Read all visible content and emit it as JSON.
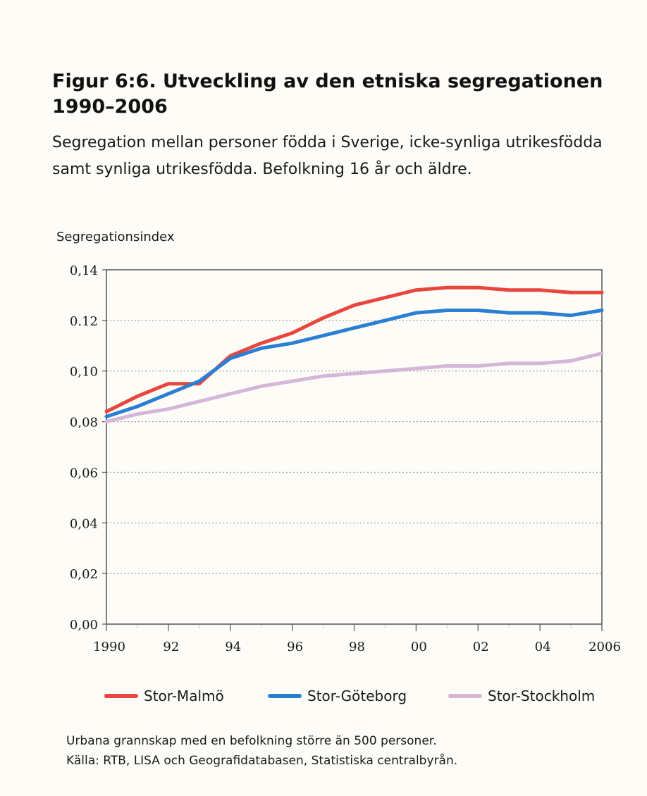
{
  "figure": {
    "title": "Figur 6:6. Utveckling av den etniska segregationen 1990–2006",
    "subtitle": "Segregation mellan personer födda i Sverige, icke-synliga utrikesfödda samt synliga utrikesfödda. Befolkning 16 år och äldre.",
    "note": "Urbana grannskap med en befolkning större än 500 personer.",
    "source": "Källa: RTB, LISA och Geografidatabasen, Statistiska centralbyrån."
  },
  "chart_data": {
    "type": "line",
    "title": "",
    "xlabel": "",
    "ylabel": "Segregationsindex",
    "x": [
      1990,
      1991,
      1992,
      1993,
      1994,
      1995,
      1996,
      1997,
      1998,
      1999,
      2000,
      2001,
      2002,
      2003,
      2004,
      2005,
      2006
    ],
    "xlim": [
      1990,
      2006
    ],
    "ylim": [
      0,
      0.14
    ],
    "grid": true,
    "legend_position": "bottom",
    "x_ticks": [
      {
        "value": 1990,
        "label": "1990"
      },
      {
        "value": 1992,
        "label": "92"
      },
      {
        "value": 1994,
        "label": "94"
      },
      {
        "value": 1996,
        "label": "96"
      },
      {
        "value": 1998,
        "label": "98"
      },
      {
        "value": 2000,
        "label": "00"
      },
      {
        "value": 2002,
        "label": "02"
      },
      {
        "value": 2004,
        "label": "04"
      },
      {
        "value": 2006,
        "label": "2006"
      }
    ],
    "y_ticks": [
      {
        "value": 0.0,
        "label": "0,00"
      },
      {
        "value": 0.02,
        "label": "0,02"
      },
      {
        "value": 0.04,
        "label": "0,04"
      },
      {
        "value": 0.06,
        "label": "0,06"
      },
      {
        "value": 0.08,
        "label": "0,08"
      },
      {
        "value": 0.1,
        "label": "0,10"
      },
      {
        "value": 0.12,
        "label": "0.12"
      },
      {
        "value": 0.14,
        "label": "0,14"
      }
    ],
    "series": [
      {
        "name": "Stor-Malmö",
        "color": "#e8453c",
        "values": [
          0.084,
          0.09,
          0.095,
          0.095,
          0.106,
          0.111,
          0.115,
          0.121,
          0.126,
          0.129,
          0.132,
          0.133,
          0.133,
          0.132,
          0.132,
          0.131,
          0.131
        ]
      },
      {
        "name": "Stor-Göteborg",
        "color": "#2a7fd4",
        "values": [
          0.082,
          0.086,
          0.091,
          0.096,
          0.105,
          0.109,
          0.111,
          0.114,
          0.117,
          0.12,
          0.123,
          0.124,
          0.124,
          0.123,
          0.123,
          0.122,
          0.124
        ]
      },
      {
        "name": "Stor-Stockholm",
        "color": "#d4b6d9",
        "values": [
          0.08,
          0.083,
          0.085,
          0.088,
          0.091,
          0.094,
          0.096,
          0.098,
          0.099,
          0.1,
          0.101,
          0.102,
          0.102,
          0.103,
          0.103,
          0.104,
          0.107
        ]
      }
    ]
  }
}
